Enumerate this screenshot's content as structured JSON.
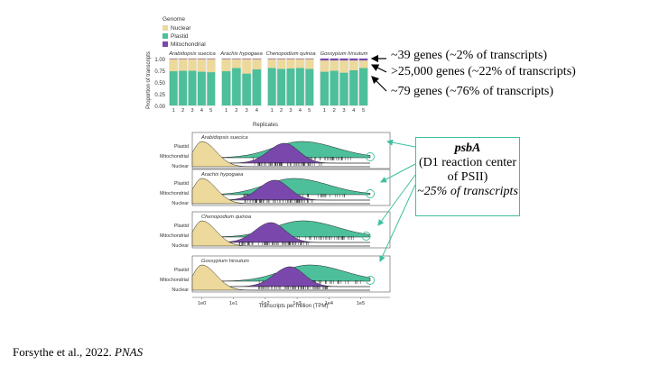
{
  "colors": {
    "nuclear": "#ecd99b",
    "plastid": "#4dbf9b",
    "mitochondrial": "#7a48ad",
    "circle": "#3fbf9f"
  },
  "legend": {
    "title": "Genome",
    "items": [
      "Nuclear",
      "Plastid",
      "Mitochondrial"
    ]
  },
  "bar_panel": {
    "ylabel": "Proportion of transcripts",
    "xlabel": "Replicates",
    "yticks": [
      "0.00",
      "0.25",
      "0.50",
      "0.75",
      "1.00"
    ]
  },
  "chart_data": [
    {
      "type": "bar",
      "stacked": true,
      "xlabel": "Replicates",
      "ylabel": "Proportion of transcripts",
      "ylim": [
        0,
        1
      ],
      "panels": [
        {
          "species": "Arabidopsis suecica",
          "categories": [
            "1",
            "2",
            "3",
            "4",
            "5"
          ],
          "series": [
            {
              "name": "Plastid",
              "values": [
                0.73,
                0.74,
                0.74,
                0.72,
                0.71
              ]
            },
            {
              "name": "Nuclear",
              "values": [
                0.26,
                0.25,
                0.25,
                0.27,
                0.28
              ]
            },
            {
              "name": "Mitochondrial",
              "values": [
                0.01,
                0.01,
                0.01,
                0.01,
                0.01
              ]
            }
          ]
        },
        {
          "species": "Arachis hypogaea",
          "categories": [
            "1",
            "2",
            "3",
            "4"
          ],
          "series": [
            {
              "name": "Plastid",
              "values": [
                0.73,
                0.8,
                0.68,
                0.77
              ]
            },
            {
              "name": "Nuclear",
              "values": [
                0.26,
                0.19,
                0.31,
                0.22
              ]
            },
            {
              "name": "Mitochondrial",
              "values": [
                0.01,
                0.01,
                0.01,
                0.01
              ]
            }
          ]
        },
        {
          "species": "Chenopodium quinoa",
          "categories": [
            "1",
            "2",
            "3",
            "4",
            "5"
          ],
          "series": [
            {
              "name": "Plastid",
              "values": [
                0.8,
                0.78,
                0.79,
                0.8,
                0.78
              ]
            },
            {
              "name": "Nuclear",
              "values": [
                0.19,
                0.21,
                0.2,
                0.19,
                0.21
              ]
            },
            {
              "name": "Mitochondrial",
              "values": [
                0.01,
                0.01,
                0.01,
                0.01,
                0.01
              ]
            }
          ]
        },
        {
          "species": "Gossypium hirsutum",
          "categories": [
            "1",
            "2",
            "3",
            "4",
            "5"
          ],
          "series": [
            {
              "name": "Plastid",
              "values": [
                0.72,
                0.74,
                0.7,
                0.75,
                0.8
              ]
            },
            {
              "name": "Nuclear",
              "values": [
                0.24,
                0.22,
                0.26,
                0.21,
                0.16
              ]
            },
            {
              "name": "Mitochondrial",
              "values": [
                0.04,
                0.04,
                0.04,
                0.04,
                0.04
              ]
            }
          ]
        }
      ]
    },
    {
      "type": "area",
      "subtype": "ridgeline",
      "xlabel": "Transcripts per million (TPM)",
      "xscale": "log10",
      "xticks": [
        "1e0",
        "1e1",
        "1e2",
        "1e3",
        "1e4",
        "1e5"
      ],
      "ylabels": [
        "Plastid",
        "Mitochondrial",
        "Nuclear"
      ],
      "panels": [
        {
          "species": "Arabidopsis suecica",
          "nuclear_peak_tpm": 1,
          "mitochondrial_peak_tpm": 400,
          "plastid_peak_tpm": 1400,
          "plastid_max_tpm": 200000
        },
        {
          "species": "Arachis hypogaea",
          "nuclear_peak_tpm": 1,
          "mitochondrial_peak_tpm": 200,
          "plastid_peak_tpm": 800,
          "plastid_max_tpm": 200000
        },
        {
          "species": "Chenopodium quinoa",
          "nuclear_peak_tpm": 1,
          "mitochondrial_peak_tpm": 150,
          "plastid_peak_tpm": 1500,
          "plastid_max_tpm": 150000
        },
        {
          "species": "Gossypium hirsutum",
          "nuclear_peak_tpm": 1,
          "mitochondrial_peak_tpm": 600,
          "plastid_peak_tpm": 2500,
          "plastid_max_tpm": 200000
        }
      ]
    }
  ],
  "annotations": [
    "~39 genes (~2% of transcripts)",
    ">25,000 genes (~22% of transcripts)",
    "~79 genes (~76% of transcripts)"
  ],
  "callout": {
    "gene": "psbA",
    "description": "(D1 reaction center of PSII)",
    "percent": "~25% of transcripts"
  },
  "citation": {
    "authors": "Forsythe et al., 2022.",
    "journal": "PNAS"
  }
}
